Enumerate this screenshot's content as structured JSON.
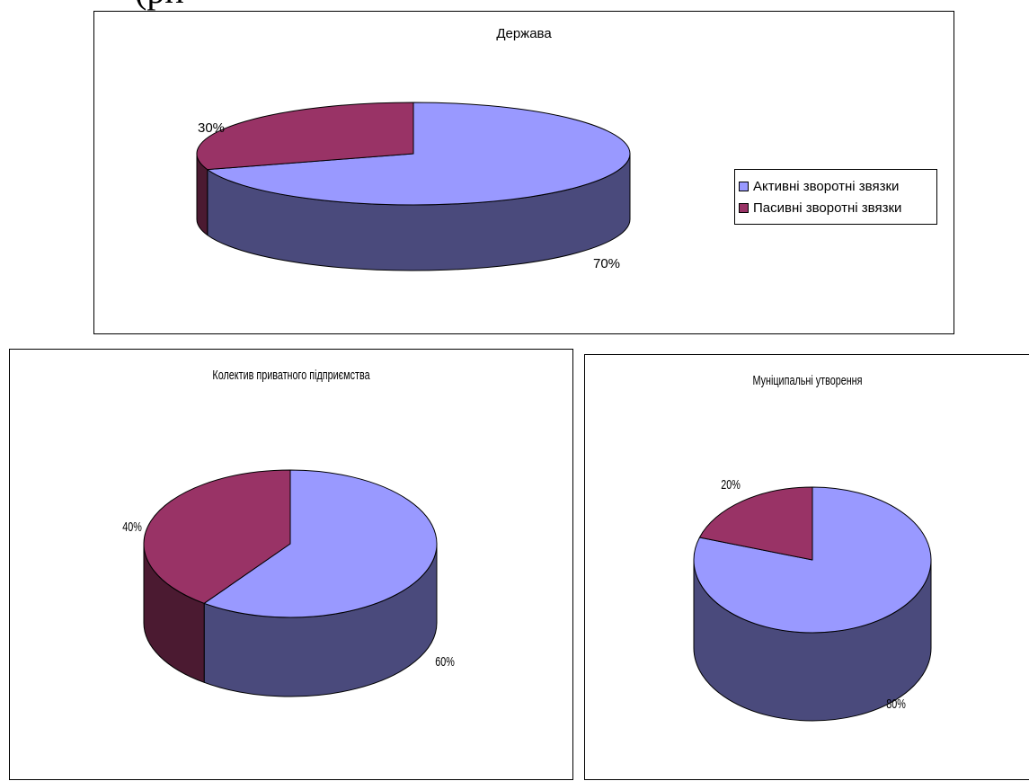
{
  "page": {
    "heading_fragment": "(ри"
  },
  "colors": {
    "series": [
      "#9999FF",
      "#993366"
    ],
    "series_side": [
      "#4A4A7C",
      "#4B1A31"
    ]
  },
  "legend": {
    "position": "right",
    "items": [
      "Активні зворотні звязки",
      "Пасивні зворотні звязки"
    ]
  },
  "chart_data": [
    {
      "type": "pie",
      "title": "Держава",
      "categories": [
        "Активні зворотні звязки",
        "Пасивні зворотні звязки"
      ],
      "values": [
        70,
        30
      ],
      "labels": [
        "70%",
        "30%"
      ],
      "legend": "right"
    },
    {
      "type": "pie",
      "title": "Колектив приватного підприємства",
      "categories": [
        "Активні зворотні звязки",
        "Пасивні зворотні звязки"
      ],
      "values": [
        60,
        40
      ],
      "labels": [
        "60%",
        "40%"
      ]
    },
    {
      "type": "pie",
      "title": "Муніципальні утворення",
      "categories": [
        "Активні зворотні звязки",
        "Пасивні зворотні звязки"
      ],
      "values": [
        80,
        20
      ],
      "labels": [
        "80%",
        "20%"
      ]
    }
  ]
}
